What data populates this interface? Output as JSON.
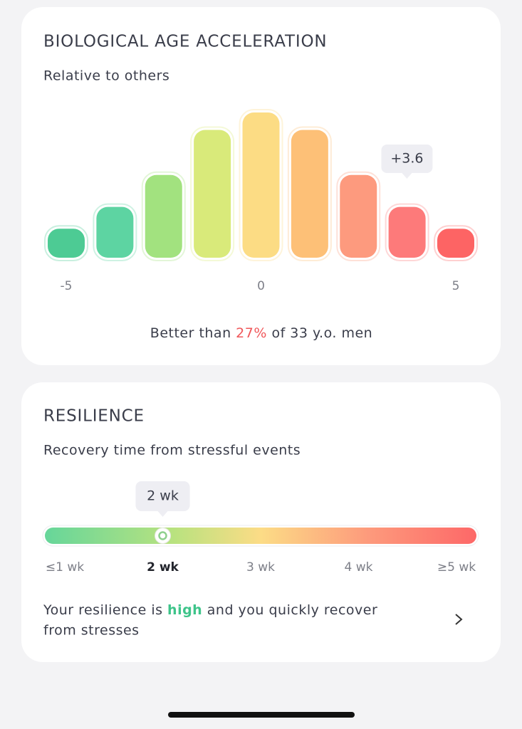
{
  "chart_data": {
    "type": "bar",
    "title": "BIOLOGICAL AGE ACCELERATION",
    "subtitle": "Relative to others",
    "x": [
      -5,
      -3.75,
      -2.5,
      -1.25,
      0,
      1.25,
      2.5,
      3.75,
      5
    ],
    "values": [
      20,
      35,
      57,
      88,
      100,
      88,
      57,
      35,
      20
    ],
    "colors": [
      "#4dcb94",
      "#5dd4a2",
      "#a2e27f",
      "#d9ea7a",
      "#fcdc84",
      "#fdc077",
      "#fd9a7e",
      "#fd7a7a",
      "#fd6464"
    ],
    "xlim": [
      -5,
      5
    ],
    "xticks": [
      -5,
      0,
      5
    ],
    "ylim": [
      0,
      100
    ],
    "marker": {
      "value": 3.6,
      "label": "+3.6"
    },
    "summary": [
      "Better than ",
      "27%",
      " of 33 y.o. men"
    ]
  },
  "resilience": {
    "title": "RESILIENCE",
    "subtitle": "Recovery time from stressful events",
    "scale": {
      "range": [
        1,
        5
      ],
      "ticks": [
        {
          "value": 1,
          "label": "≤1 wk"
        },
        {
          "value": 2,
          "label": "2 wk"
        },
        {
          "value": 3,
          "label": "3 wk"
        },
        {
          "value": 4,
          "label": "4 wk"
        },
        {
          "value": 5,
          "label": "≥5 wk"
        }
      ]
    },
    "current": {
      "value": 2,
      "label": "2 wk"
    },
    "message": [
      "Your resilience is ",
      "high",
      " and you quickly recover",
      "from stresses"
    ]
  }
}
